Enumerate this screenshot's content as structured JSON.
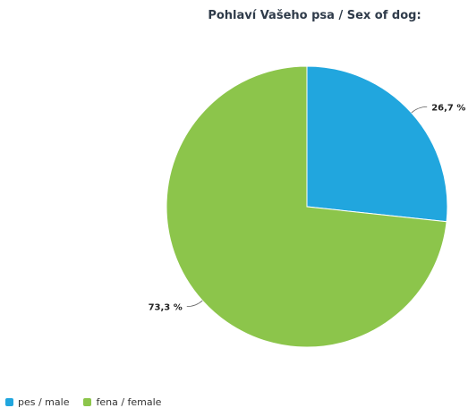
{
  "chart_data": {
    "type": "pie",
    "title": "Pohlaví Vašeho psa / Sex of dog:",
    "series": [
      {
        "name": "pes / male",
        "value": 26.7,
        "label": "26,7 %",
        "color": "#21a6de"
      },
      {
        "name": "fena / female",
        "value": 73.3,
        "label": "73,3 %",
        "color": "#8cc54b"
      }
    ],
    "legend": "bottom-left"
  }
}
